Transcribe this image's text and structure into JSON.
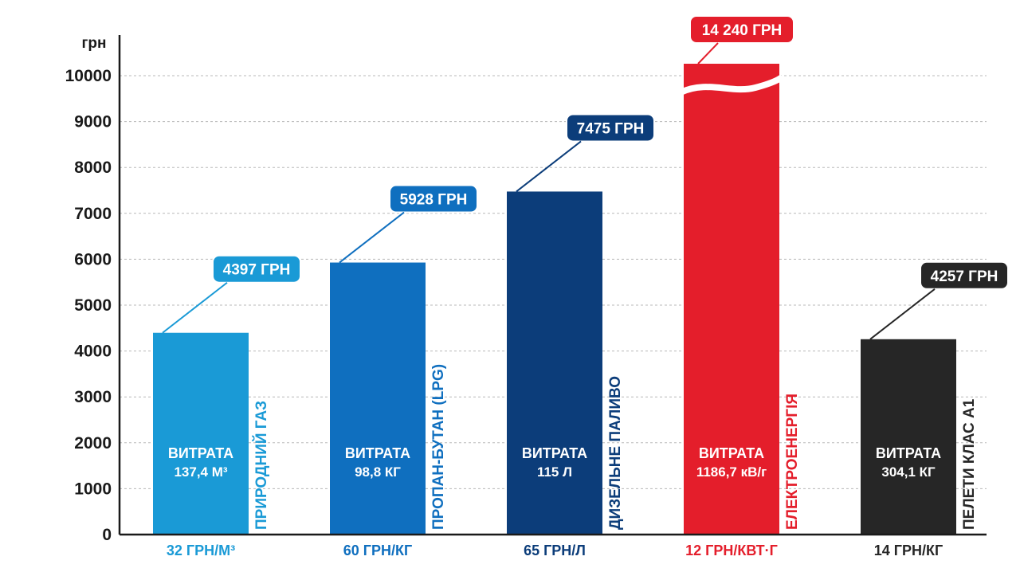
{
  "chart_data": {
    "type": "bar",
    "ylabel": "грн",
    "ylim": [
      0,
      10000
    ],
    "yticks": [
      0,
      1000,
      2000,
      3000,
      4000,
      5000,
      6000,
      7000,
      8000,
      9000,
      10000
    ],
    "grid": true,
    "axis_break": "Електроенергія",
    "categories": [
      "Природний газ",
      "Пропан-бутан (LPG)",
      "Дизельне паливо",
      "Електроенергія",
      "Пелети клас А1"
    ],
    "values": [
      4397,
      5928,
      7475,
      14240,
      4257
    ],
    "value_labels": [
      "4397 ГРН",
      "5928 ГРН",
      "7475 ГРН",
      "14 240 ГРН",
      "4257 ГРН"
    ],
    "consumption_heading": "ВИТРАТА",
    "consumption": [
      "137,4 М³",
      "98,8 КГ",
      "115 Л",
      "1186,7 кВ/г",
      "304,1 КГ"
    ],
    "prices": [
      "32 ГРН/М³",
      "60 ГРН/КГ",
      "65 ГРН/Л",
      "12 ГРН/КВТ·Г",
      "14 ГРН/КГ"
    ],
    "names": [
      "ПРИРОДНИЙ ГАЗ",
      "ПРОПАН-БУТАН (LPG)",
      "ДИЗЕЛЬНЕ ПАЛИВО",
      "ЕЛЕКТРОЕНЕРГІЯ",
      "ПЕЛЕТИ КЛАС А1"
    ],
    "colors": [
      "#1a9ad6",
      "#0f6fbf",
      "#0c3d7a",
      "#e41e2b",
      "#262626"
    ]
  }
}
